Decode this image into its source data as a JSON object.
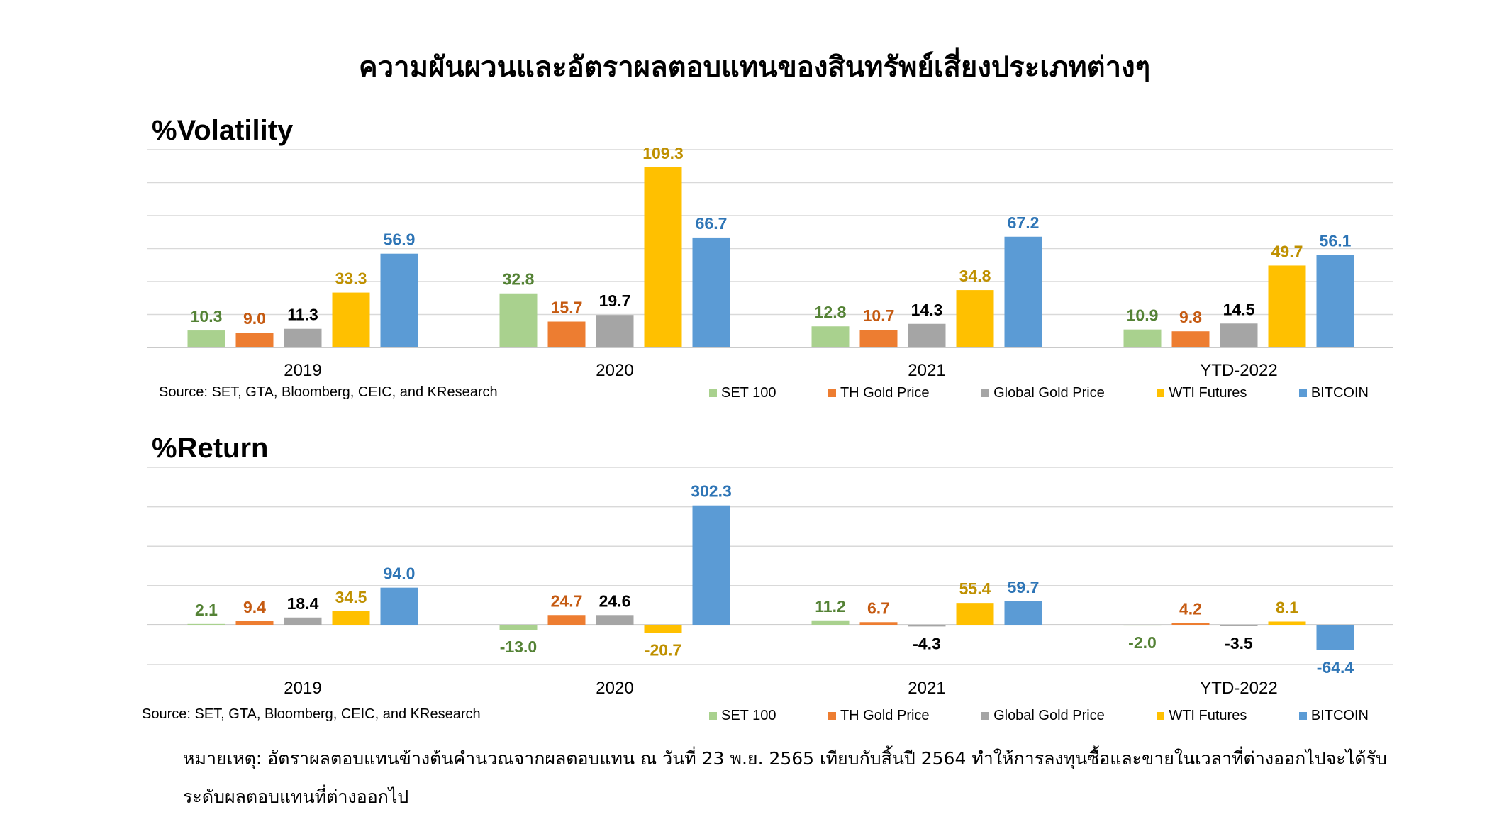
{
  "title": "ความผันผวนและอัตราผลตอบแทนของสินทรัพย์เสี่ยงประเภทต่างๆ",
  "note_line1": "หมายเหตุ: อัตราผลตอบแทนข้างต้นคำนวณจากผลตอบแทน ณ วันที่ 23 พ.ย. 2565 เทียบกับสิ้นปี 2564 ทำให้การลงทุนซื้อและขายในเวลาที่ต่างออกไปจะได้รับ",
  "note_line2": "ระดับผลตอบแทนที่ต่างออกไป",
  "series_colors": [
    "#a9d18e",
    "#ed7d31",
    "#a5a5a5",
    "#ffc000",
    "#5b9bd5"
  ],
  "label_colors": [
    "#548235",
    "#c55a11",
    "#000000",
    "#bf9000",
    "#2e75b6"
  ],
  "chart_data": [
    {
      "type": "bar",
      "title": "%Volatility",
      "source": "Source: SET, GTA, Bloomberg, CEIC, and KResearch",
      "categories": [
        "2019",
        "2020",
        "2021",
        "YTD-2022"
      ],
      "ylim": [
        0,
        120
      ],
      "grid": true,
      "legend_position": "bottom-right",
      "series": [
        {
          "name": "SET 100",
          "values": [
            10.3,
            32.8,
            12.8,
            10.9
          ]
        },
        {
          "name": "TH Gold Price",
          "values": [
            9.0,
            15.7,
            10.7,
            9.8
          ]
        },
        {
          "name": "Global Gold Price",
          "values": [
            11.3,
            19.7,
            14.3,
            14.5
          ]
        },
        {
          "name": "WTI Futures",
          "values": [
            33.3,
            109.3,
            34.8,
            49.7
          ]
        },
        {
          "name": "BITCOIN",
          "values": [
            56.9,
            66.7,
            67.2,
            56.1
          ]
        }
      ]
    },
    {
      "type": "bar",
      "title": "%Return",
      "source": "Source: SET, GTA, Bloomberg, CEIC, and KResearch",
      "categories": [
        "2019",
        "2020",
        "2021",
        "YTD-2022"
      ],
      "ylim": [
        -100,
        300
      ],
      "grid": true,
      "legend_position": "bottom-right",
      "series": [
        {
          "name": "SET 100",
          "values": [
            2.1,
            -13.0,
            11.2,
            -2.0
          ]
        },
        {
          "name": "TH Gold Price",
          "values": [
            9.4,
            24.7,
            6.7,
            4.2
          ]
        },
        {
          "name": "Global Gold Price",
          "values": [
            18.4,
            24.6,
            -4.3,
            -3.5
          ]
        },
        {
          "name": "WTI Futures",
          "values": [
            34.5,
            -20.7,
            55.4,
            8.1
          ]
        },
        {
          "name": "BITCOIN",
          "values": [
            94.0,
            302.3,
            59.7,
            -64.4
          ]
        }
      ]
    }
  ]
}
